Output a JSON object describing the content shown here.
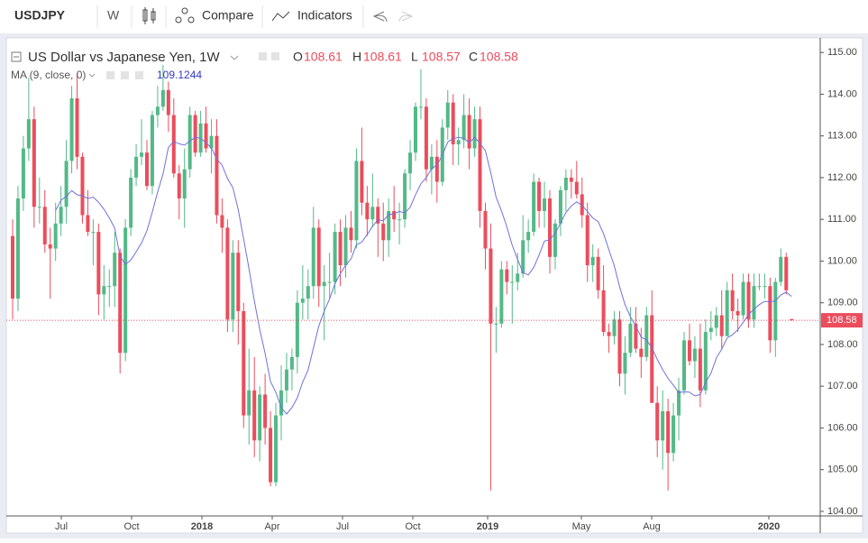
{
  "toolbar": {
    "symbol": "USDJPY",
    "interval": "W",
    "compare": "Compare",
    "indicators": "Indicators"
  },
  "chart_data": {
    "type": "candlestick",
    "title": "US Dollar vs Japanese Yen, 1W",
    "ohlc_letters": [
      "O",
      "H",
      "L",
      "C"
    ],
    "indicator": {
      "name": "MA (9, close, 0)",
      "value_label": "109.1244",
      "period": 9,
      "color": "#7070dd"
    },
    "up_color": "#53b987",
    "down_color": "#eb4d5c",
    "ylim": [
      103.89,
      115.35
    ],
    "yticks": [
      {
        "value": 104,
        "label": "104.00"
      },
      {
        "value": 105,
        "label": "105.00"
      },
      {
        "value": 106,
        "label": "106.00"
      },
      {
        "value": 107,
        "label": "107.00"
      },
      {
        "value": 108,
        "label": "108.00"
      },
      {
        "value": 109,
        "label": "109.00"
      },
      {
        "value": 110,
        "label": "110.00"
      },
      {
        "value": 111,
        "label": "111.00"
      },
      {
        "value": 112,
        "label": "112.00"
      },
      {
        "value": 113,
        "label": "113.00"
      },
      {
        "value": 114,
        "label": "114.00"
      },
      {
        "value": 115,
        "label": "115.00"
      }
    ],
    "xtick_labels": [
      "Jul",
      "Oct",
      "2018",
      "Apr",
      "Jul",
      "Oct",
      "2019",
      "May",
      "Aug",
      "2020"
    ],
    "ohlc": [
      [
        110.6,
        111.0,
        108.6,
        109.1
      ],
      [
        109.1,
        111.8,
        108.8,
        111.5
      ],
      [
        111.5,
        113.0,
        111.2,
        112.7
      ],
      [
        112.7,
        114.4,
        112.4,
        113.4
      ],
      [
        113.4,
        113.7,
        110.8,
        111.3
      ],
      [
        111.3,
        112.0,
        110.9,
        111.3
      ],
      [
        111.3,
        111.7,
        110.2,
        110.4
      ],
      [
        110.4,
        110.8,
        109.1,
        110.3
      ],
      [
        110.3,
        111.4,
        110.0,
        110.9
      ],
      [
        110.9,
        111.8,
        110.6,
        111.3
      ],
      [
        111.3,
        112.9,
        110.9,
        112.4
      ],
      [
        112.4,
        114.2,
        112.1,
        113.9
      ],
      [
        113.9,
        114.5,
        112.2,
        112.5
      ],
      [
        112.5,
        112.6,
        110.9,
        111.1
      ],
      [
        111.1,
        111.7,
        110.6,
        110.7
      ],
      [
        110.7,
        111.0,
        109.9,
        110.7
      ],
      [
        110.7,
        110.9,
        108.7,
        109.2
      ],
      [
        109.2,
        109.9,
        108.6,
        109.4
      ],
      [
        109.4,
        109.8,
        108.9,
        109.4
      ],
      [
        109.4,
        110.7,
        108.9,
        110.2
      ],
      [
        110.2,
        110.3,
        107.3,
        107.8
      ],
      [
        107.8,
        111.0,
        107.6,
        110.8
      ],
      [
        110.8,
        112.2,
        110.6,
        112.0
      ],
      [
        112.0,
        112.8,
        111.8,
        112.5
      ],
      [
        112.5,
        113.4,
        112.3,
        112.6
      ],
      [
        112.6,
        112.9,
        111.7,
        111.8
      ],
      [
        111.8,
        113.6,
        111.6,
        113.5
      ],
      [
        113.5,
        114.2,
        113.2,
        113.7
      ],
      [
        113.7,
        114.7,
        113.6,
        114.1
      ],
      [
        114.1,
        114.3,
        113.1,
        113.5
      ],
      [
        113.5,
        113.9,
        112.0,
        112.1
      ],
      [
        112.1,
        112.3,
        111.0,
        111.5
      ],
      [
        111.5,
        112.7,
        110.8,
        112.2
      ],
      [
        112.2,
        113.7,
        112.0,
        113.5
      ],
      [
        113.5,
        113.6,
        112.5,
        112.6
      ],
      [
        112.6,
        113.6,
        112.5,
        113.3
      ],
      [
        113.3,
        113.7,
        112.6,
        112.7
      ],
      [
        112.7,
        113.4,
        112.1,
        113.0
      ],
      [
        113.0,
        113.4,
        110.9,
        111.1
      ],
      [
        111.1,
        111.5,
        110.2,
        110.8
      ],
      [
        110.8,
        111.0,
        108.3,
        108.6
      ],
      [
        108.6,
        110.5,
        108.3,
        110.2
      ],
      [
        110.2,
        110.5,
        108.0,
        108.8
      ],
      [
        108.8,
        109.0,
        106.0,
        106.3
      ],
      [
        106.3,
        107.9,
        105.6,
        106.9
      ],
      [
        106.9,
        107.7,
        105.3,
        105.7
      ],
      [
        105.7,
        107.0,
        105.2,
        106.8
      ],
      [
        106.8,
        107.3,
        105.6,
        106.0
      ],
      [
        106.0,
        106.4,
        104.6,
        104.7
      ],
      [
        104.7,
        106.6,
        104.6,
        106.3
      ],
      [
        106.3,
        107.5,
        105.7,
        106.9
      ],
      [
        106.9,
        107.8,
        106.6,
        107.4
      ],
      [
        107.4,
        107.9,
        106.9,
        107.7
      ],
      [
        107.7,
        109.3,
        107.3,
        109.0
      ],
      [
        109.0,
        109.9,
        108.6,
        109.1
      ],
      [
        109.1,
        109.8,
        108.6,
        109.4
      ],
      [
        109.4,
        111.3,
        109.1,
        110.8
      ],
      [
        110.8,
        111.0,
        108.9,
        109.4
      ],
      [
        109.4,
        109.9,
        108.1,
        109.5
      ],
      [
        109.5,
        110.2,
        109.1,
        109.5
      ],
      [
        109.5,
        110.9,
        109.2,
        110.7
      ],
      [
        110.7,
        111.0,
        109.4,
        109.9
      ],
      [
        109.9,
        111.1,
        109.6,
        110.8
      ],
      [
        110.8,
        111.2,
        110.2,
        110.5
      ],
      [
        110.5,
        112.7,
        110.3,
        112.4
      ],
      [
        112.4,
        113.2,
        111.1,
        111.4
      ],
      [
        111.4,
        111.8,
        110.6,
        111.0
      ],
      [
        111.0,
        112.1,
        110.8,
        111.3
      ],
      [
        111.3,
        111.5,
        110.1,
        110.9
      ],
      [
        110.9,
        111.4,
        110.0,
        110.5
      ],
      [
        110.5,
        111.5,
        110.1,
        111.2
      ],
      [
        111.2,
        111.8,
        110.7,
        111.0
      ],
      [
        111.0,
        111.4,
        110.4,
        111.0
      ],
      [
        111.0,
        112.2,
        110.8,
        112.1
      ],
      [
        112.1,
        112.9,
        111.7,
        112.6
      ],
      [
        112.6,
        113.8,
        112.4,
        113.7
      ],
      [
        113.7,
        114.6,
        113.4,
        113.7
      ],
      [
        113.7,
        113.9,
        111.9,
        112.2
      ],
      [
        112.2,
        112.8,
        111.6,
        112.5
      ],
      [
        112.5,
        112.9,
        111.4,
        111.9
      ],
      [
        111.9,
        113.4,
        111.8,
        113.2
      ],
      [
        113.2,
        114.1,
        112.9,
        113.8
      ],
      [
        113.8,
        114.0,
        112.3,
        112.8
      ],
      [
        112.8,
        113.2,
        112.3,
        112.9
      ],
      [
        112.9,
        114.0,
        112.7,
        113.5
      ],
      [
        113.5,
        113.9,
        112.2,
        112.7
      ],
      [
        112.7,
        113.7,
        112.5,
        113.4
      ],
      [
        113.4,
        113.7,
        110.8,
        111.2
      ],
      [
        111.2,
        111.4,
        109.8,
        110.3
      ],
      [
        110.3,
        110.9,
        104.5,
        108.5
      ],
      [
        108.5,
        108.9,
        107.8,
        108.5
      ],
      [
        108.5,
        110.0,
        108.4,
        109.8
      ],
      [
        109.8,
        110.0,
        109.2,
        109.5
      ],
      [
        109.5,
        109.9,
        108.5,
        109.5
      ],
      [
        109.5,
        110.2,
        109.3,
        109.7
      ],
      [
        109.7,
        111.1,
        109.6,
        110.5
      ],
      [
        110.5,
        111.0,
        110.2,
        110.7
      ],
      [
        110.7,
        112.1,
        110.6,
        111.9
      ],
      [
        111.9,
        112.0,
        110.8,
        111.2
      ],
      [
        111.2,
        111.9,
        110.8,
        111.5
      ],
      [
        111.5,
        111.7,
        109.7,
        110.1
      ],
      [
        110.1,
        111.0,
        109.8,
        110.9
      ],
      [
        110.9,
        111.8,
        110.6,
        111.7
      ],
      [
        111.7,
        112.2,
        111.2,
        112.0
      ],
      [
        112.0,
        112.2,
        111.5,
        111.9
      ],
      [
        111.9,
        112.4,
        111.5,
        111.6
      ],
      [
        111.6,
        112.0,
        110.8,
        111.1
      ],
      [
        111.1,
        111.4,
        109.5,
        109.9
      ],
      [
        109.9,
        110.4,
        109.5,
        110.1
      ],
      [
        110.1,
        110.3,
        109.1,
        109.3
      ],
      [
        109.3,
        109.9,
        108.2,
        108.3
      ],
      [
        108.3,
        108.5,
        107.8,
        108.2
      ],
      [
        108.2,
        108.8,
        108.0,
        108.6
      ],
      [
        108.6,
        108.8,
        107.0,
        107.3
      ],
      [
        107.3,
        108.2,
        106.8,
        107.8
      ],
      [
        107.8,
        108.9,
        107.7,
        108.5
      ],
      [
        108.5,
        108.9,
        107.8,
        107.9
      ],
      [
        107.9,
        108.4,
        107.2,
        107.7
      ],
      [
        107.7,
        108.9,
        107.6,
        108.7
      ],
      [
        108.7,
        109.3,
        106.6,
        106.6
      ],
      [
        106.6,
        107.0,
        105.3,
        105.7
      ],
      [
        105.7,
        106.9,
        105.0,
        106.4
      ],
      [
        106.4,
        106.7,
        104.5,
        105.4
      ],
      [
        105.4,
        106.6,
        105.2,
        106.3
      ],
      [
        106.3,
        107.2,
        105.7,
        106.9
      ],
      [
        106.9,
        108.3,
        106.8,
        108.1
      ],
      [
        108.1,
        108.5,
        107.5,
        107.6
      ],
      [
        107.6,
        108.2,
        107.2,
        107.9
      ],
      [
        107.9,
        108.5,
        106.5,
        106.9
      ],
      [
        106.9,
        108.6,
        106.8,
        108.3
      ],
      [
        108.3,
        108.8,
        108.1,
        108.4
      ],
      [
        108.4,
        108.9,
        108.2,
        108.7
      ],
      [
        108.7,
        109.3,
        107.9,
        108.2
      ],
      [
        108.2,
        109.5,
        108.2,
        109.3
      ],
      [
        109.3,
        109.7,
        108.6,
        108.8
      ],
      [
        108.8,
        109.1,
        108.3,
        108.7
      ],
      [
        108.7,
        109.7,
        108.6,
        109.5
      ],
      [
        109.5,
        109.7,
        108.4,
        108.6
      ],
      [
        108.6,
        109.7,
        108.4,
        109.4
      ],
      [
        109.4,
        109.7,
        109.3,
        109.4
      ],
      [
        109.4,
        109.7,
        109.1,
        109.4
      ],
      [
        109.4,
        109.6,
        107.8,
        108.1
      ],
      [
        108.1,
        109.6,
        107.7,
        109.5
      ],
      [
        109.5,
        110.3,
        109.4,
        110.1
      ],
      [
        110.1,
        110.2,
        109.2,
        109.3
      ],
      [
        108.61,
        108.61,
        108.57,
        108.58
      ]
    ]
  }
}
